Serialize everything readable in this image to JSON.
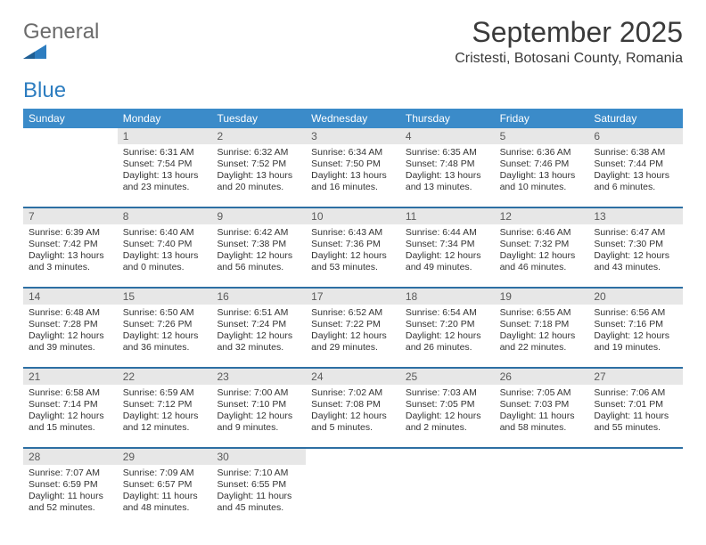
{
  "brand": {
    "name_part1": "General",
    "name_part2": "Blue",
    "colors": {
      "gray": "#6b6b6b",
      "blue": "#2d7dc0",
      "icon_fill": "#2d7dc0"
    }
  },
  "title": "September 2025",
  "location": "Cristesti, Botosani County, Romania",
  "theme": {
    "header_bg": "#3b8bc9",
    "header_text": "#ffffff",
    "daynum_bg": "#e7e7e7",
    "daynum_text": "#5a5a5a",
    "week_divider": "#2d6fa3",
    "body_text": "#333333",
    "page_bg": "#ffffff",
    "title_color": "#3a3a3a",
    "fontsize_title": 32,
    "fontsize_location": 16,
    "fontsize_dow": 12,
    "fontsize_body": 10.5
  },
  "days_of_week": [
    "Sunday",
    "Monday",
    "Tuesday",
    "Wednesday",
    "Thursday",
    "Friday",
    "Saturday"
  ],
  "weeks": [
    [
      {
        "num": "",
        "sunrise": "",
        "sunset": "",
        "daylight": ""
      },
      {
        "num": "1",
        "sunrise": "Sunrise: 6:31 AM",
        "sunset": "Sunset: 7:54 PM",
        "daylight": "Daylight: 13 hours and 23 minutes."
      },
      {
        "num": "2",
        "sunrise": "Sunrise: 6:32 AM",
        "sunset": "Sunset: 7:52 PM",
        "daylight": "Daylight: 13 hours and 20 minutes."
      },
      {
        "num": "3",
        "sunrise": "Sunrise: 6:34 AM",
        "sunset": "Sunset: 7:50 PM",
        "daylight": "Daylight: 13 hours and 16 minutes."
      },
      {
        "num": "4",
        "sunrise": "Sunrise: 6:35 AM",
        "sunset": "Sunset: 7:48 PM",
        "daylight": "Daylight: 13 hours and 13 minutes."
      },
      {
        "num": "5",
        "sunrise": "Sunrise: 6:36 AM",
        "sunset": "Sunset: 7:46 PM",
        "daylight": "Daylight: 13 hours and 10 minutes."
      },
      {
        "num": "6",
        "sunrise": "Sunrise: 6:38 AM",
        "sunset": "Sunset: 7:44 PM",
        "daylight": "Daylight: 13 hours and 6 minutes."
      }
    ],
    [
      {
        "num": "7",
        "sunrise": "Sunrise: 6:39 AM",
        "sunset": "Sunset: 7:42 PM",
        "daylight": "Daylight: 13 hours and 3 minutes."
      },
      {
        "num": "8",
        "sunrise": "Sunrise: 6:40 AM",
        "sunset": "Sunset: 7:40 PM",
        "daylight": "Daylight: 13 hours and 0 minutes."
      },
      {
        "num": "9",
        "sunrise": "Sunrise: 6:42 AM",
        "sunset": "Sunset: 7:38 PM",
        "daylight": "Daylight: 12 hours and 56 minutes."
      },
      {
        "num": "10",
        "sunrise": "Sunrise: 6:43 AM",
        "sunset": "Sunset: 7:36 PM",
        "daylight": "Daylight: 12 hours and 53 minutes."
      },
      {
        "num": "11",
        "sunrise": "Sunrise: 6:44 AM",
        "sunset": "Sunset: 7:34 PM",
        "daylight": "Daylight: 12 hours and 49 minutes."
      },
      {
        "num": "12",
        "sunrise": "Sunrise: 6:46 AM",
        "sunset": "Sunset: 7:32 PM",
        "daylight": "Daylight: 12 hours and 46 minutes."
      },
      {
        "num": "13",
        "sunrise": "Sunrise: 6:47 AM",
        "sunset": "Sunset: 7:30 PM",
        "daylight": "Daylight: 12 hours and 43 minutes."
      }
    ],
    [
      {
        "num": "14",
        "sunrise": "Sunrise: 6:48 AM",
        "sunset": "Sunset: 7:28 PM",
        "daylight": "Daylight: 12 hours and 39 minutes."
      },
      {
        "num": "15",
        "sunrise": "Sunrise: 6:50 AM",
        "sunset": "Sunset: 7:26 PM",
        "daylight": "Daylight: 12 hours and 36 minutes."
      },
      {
        "num": "16",
        "sunrise": "Sunrise: 6:51 AM",
        "sunset": "Sunset: 7:24 PM",
        "daylight": "Daylight: 12 hours and 32 minutes."
      },
      {
        "num": "17",
        "sunrise": "Sunrise: 6:52 AM",
        "sunset": "Sunset: 7:22 PM",
        "daylight": "Daylight: 12 hours and 29 minutes."
      },
      {
        "num": "18",
        "sunrise": "Sunrise: 6:54 AM",
        "sunset": "Sunset: 7:20 PM",
        "daylight": "Daylight: 12 hours and 26 minutes."
      },
      {
        "num": "19",
        "sunrise": "Sunrise: 6:55 AM",
        "sunset": "Sunset: 7:18 PM",
        "daylight": "Daylight: 12 hours and 22 minutes."
      },
      {
        "num": "20",
        "sunrise": "Sunrise: 6:56 AM",
        "sunset": "Sunset: 7:16 PM",
        "daylight": "Daylight: 12 hours and 19 minutes."
      }
    ],
    [
      {
        "num": "21",
        "sunrise": "Sunrise: 6:58 AM",
        "sunset": "Sunset: 7:14 PM",
        "daylight": "Daylight: 12 hours and 15 minutes."
      },
      {
        "num": "22",
        "sunrise": "Sunrise: 6:59 AM",
        "sunset": "Sunset: 7:12 PM",
        "daylight": "Daylight: 12 hours and 12 minutes."
      },
      {
        "num": "23",
        "sunrise": "Sunrise: 7:00 AM",
        "sunset": "Sunset: 7:10 PM",
        "daylight": "Daylight: 12 hours and 9 minutes."
      },
      {
        "num": "24",
        "sunrise": "Sunrise: 7:02 AM",
        "sunset": "Sunset: 7:08 PM",
        "daylight": "Daylight: 12 hours and 5 minutes."
      },
      {
        "num": "25",
        "sunrise": "Sunrise: 7:03 AM",
        "sunset": "Sunset: 7:05 PM",
        "daylight": "Daylight: 12 hours and 2 minutes."
      },
      {
        "num": "26",
        "sunrise": "Sunrise: 7:05 AM",
        "sunset": "Sunset: 7:03 PM",
        "daylight": "Daylight: 11 hours and 58 minutes."
      },
      {
        "num": "27",
        "sunrise": "Sunrise: 7:06 AM",
        "sunset": "Sunset: 7:01 PM",
        "daylight": "Daylight: 11 hours and 55 minutes."
      }
    ],
    [
      {
        "num": "28",
        "sunrise": "Sunrise: 7:07 AM",
        "sunset": "Sunset: 6:59 PM",
        "daylight": "Daylight: 11 hours and 52 minutes."
      },
      {
        "num": "29",
        "sunrise": "Sunrise: 7:09 AM",
        "sunset": "Sunset: 6:57 PM",
        "daylight": "Daylight: 11 hours and 48 minutes."
      },
      {
        "num": "30",
        "sunrise": "Sunrise: 7:10 AM",
        "sunset": "Sunset: 6:55 PM",
        "daylight": "Daylight: 11 hours and 45 minutes."
      },
      {
        "num": "",
        "sunrise": "",
        "sunset": "",
        "daylight": ""
      },
      {
        "num": "",
        "sunrise": "",
        "sunset": "",
        "daylight": ""
      },
      {
        "num": "",
        "sunrise": "",
        "sunset": "",
        "daylight": ""
      },
      {
        "num": "",
        "sunrise": "",
        "sunset": "",
        "daylight": ""
      }
    ]
  ]
}
